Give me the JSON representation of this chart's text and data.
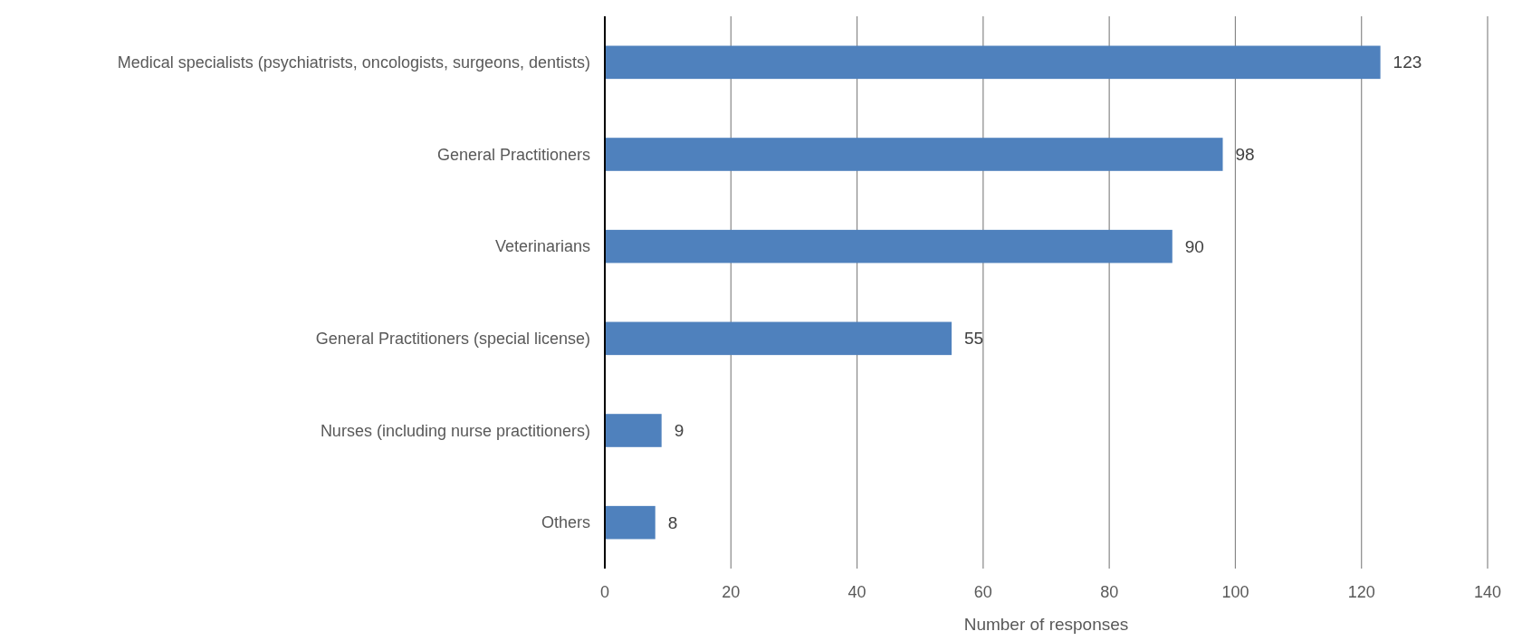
{
  "chart_data": {
    "type": "bar",
    "orientation": "horizontal",
    "categories": [
      "Medical specialists (psychiatrists, oncologists, surgeons, dentists)",
      "General Practitioners",
      "Veterinarians",
      "General Practitioners (special license)",
      "Nurses (including nurse practitioners)",
      "Others"
    ],
    "values": [
      123,
      98,
      90,
      55,
      9,
      8
    ],
    "color": "#4f81bd",
    "xlim": [
      0,
      140
    ],
    "xticks": [
      0,
      20,
      40,
      60,
      80,
      100,
      120,
      140
    ],
    "xlabel": "Number of responses",
    "grid": "x",
    "data_labels": true
  }
}
